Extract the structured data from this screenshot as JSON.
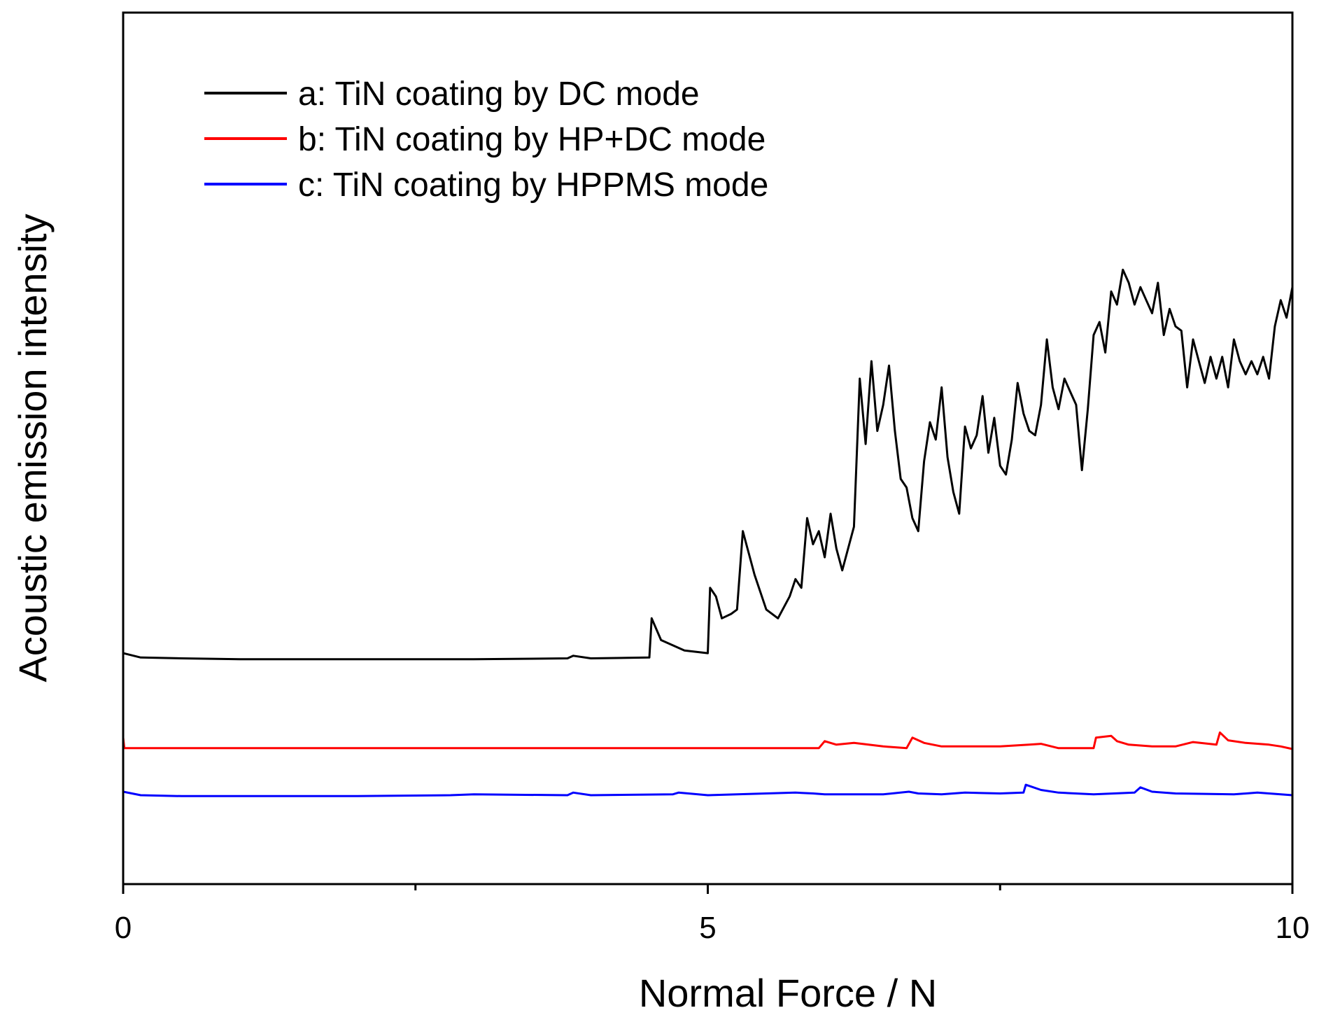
{
  "chart_data": {
    "type": "line",
    "title": "",
    "xlabel": "Normal Force / N",
    "ylabel": "Acoustic emission intensity",
    "xlim": [
      0,
      10
    ],
    "ylim": [
      0,
      100
    ],
    "x_ticks": [
      0,
      5,
      10
    ],
    "x_tick_labels": [
      "0",
      "5",
      "10"
    ],
    "x_minor_ticks": [
      2.5,
      7.5
    ],
    "y_ticks_shown": false,
    "grid": false,
    "legend_position": "top-left",
    "series": [
      {
        "name": "a: TiN coating by DC mode",
        "color": "#000000",
        "x": [
          0,
          0.15,
          0.5,
          1.0,
          2.0,
          3.0,
          3.8,
          3.85,
          4.0,
          4.5,
          4.52,
          4.6,
          4.8,
          5.0,
          5.02,
          5.07,
          5.12,
          5.2,
          5.25,
          5.3,
          5.33,
          5.38,
          5.4,
          5.45,
          5.5,
          5.6,
          5.7,
          5.75,
          5.8,
          5.85,
          5.9,
          5.95,
          6.0,
          6.05,
          6.1,
          6.15,
          6.2,
          6.25,
          6.3,
          6.35,
          6.4,
          6.45,
          6.5,
          6.55,
          6.6,
          6.65,
          6.7,
          6.75,
          6.8,
          6.85,
          6.9,
          6.95,
          7.0,
          7.05,
          7.1,
          7.15,
          7.2,
          7.25,
          7.3,
          7.35,
          7.4,
          7.45,
          7.5,
          7.55,
          7.6,
          7.65,
          7.7,
          7.75,
          7.8,
          7.85,
          7.9,
          7.95,
          8.0,
          8.05,
          8.1,
          8.15,
          8.2,
          8.25,
          8.3,
          8.35,
          8.4,
          8.45,
          8.5,
          8.55,
          8.6,
          8.65,
          8.7,
          8.75,
          8.8,
          8.85,
          8.9,
          8.95,
          9.0,
          9.05,
          9.1,
          9.15,
          9.2,
          9.25,
          9.3,
          9.35,
          9.4,
          9.45,
          9.5,
          9.55,
          9.6,
          9.65,
          9.7,
          9.75,
          9.8,
          9.85,
          9.9,
          9.95,
          10.0
        ],
        "y": [
          26.5,
          26.0,
          25.9,
          25.8,
          25.8,
          25.8,
          25.9,
          26.2,
          25.9,
          26.0,
          30.5,
          28.0,
          26.8,
          26.5,
          34.0,
          33.0,
          30.5,
          31.0,
          31.5,
          40.5,
          39.0,
          36.5,
          35.5,
          33.5,
          31.5,
          30.5,
          33.0,
          35.0,
          34.0,
          42.0,
          39.0,
          40.5,
          37.5,
          42.5,
          38.5,
          36.0,
          38.5,
          41.0,
          58.0,
          50.5,
          60.0,
          52.0,
          55.0,
          59.5,
          52.0,
          46.5,
          45.5,
          42.0,
          40.5,
          48.5,
          53.0,
          51.0,
          57.0,
          49.0,
          45.0,
          42.5,
          52.5,
          50.0,
          51.5,
          56.0,
          49.5,
          53.5,
          48.0,
          47.0,
          51.0,
          57.5,
          54.0,
          52.0,
          51.5,
          55.0,
          62.5,
          57.0,
          54.5,
          58.0,
          56.5,
          55.0,
          47.5,
          54.5,
          63.0,
          64.5,
          61.0,
          68.0,
          66.5,
          70.5,
          69.0,
          66.5,
          68.5,
          67.0,
          65.5,
          69.0,
          63.0,
          66.0,
          64.0,
          63.5,
          57.0,
          62.5,
          60.0,
          57.5,
          60.5,
          58.0,
          60.5,
          57.0,
          62.5,
          60.0,
          58.5,
          60.0,
          58.5,
          60.5,
          58.0,
          64.0,
          67.0,
          65.0,
          68.5
        ]
      },
      {
        "name": "b: TiN coating by HP+DC mode",
        "color": "#ff0000",
        "x": [
          0,
          0.01,
          0.02,
          1.0,
          2.0,
          3.0,
          4.0,
          5.0,
          5.95,
          6.0,
          6.1,
          6.25,
          6.5,
          6.7,
          6.75,
          6.85,
          7.0,
          7.2,
          7.5,
          7.75,
          7.85,
          8.0,
          8.3,
          8.32,
          8.45,
          8.5,
          8.6,
          8.8,
          9.0,
          9.15,
          9.35,
          9.38,
          9.45,
          9.6,
          9.8,
          9.9,
          10.0
        ],
        "y": [
          16.8,
          15.6,
          15.6,
          15.6,
          15.6,
          15.6,
          15.6,
          15.6,
          15.6,
          16.4,
          16.0,
          16.2,
          15.8,
          15.6,
          16.8,
          16.2,
          15.8,
          15.8,
          15.8,
          16.0,
          16.1,
          15.6,
          15.6,
          16.8,
          17.0,
          16.4,
          16.0,
          15.8,
          15.8,
          16.3,
          16.0,
          17.4,
          16.5,
          16.2,
          16.0,
          15.8,
          15.5
        ]
      },
      {
        "name": "c: TiN coating by HPPMS mode",
        "color": "#0000ff",
        "x": [
          0,
          0.15,
          0.5,
          1.0,
          2.0,
          2.8,
          3.0,
          3.8,
          3.85,
          4.0,
          4.7,
          4.75,
          5.0,
          5.5,
          5.75,
          5.9,
          6.0,
          6.5,
          6.72,
          6.8,
          7.0,
          7.2,
          7.5,
          7.7,
          7.72,
          7.85,
          8.0,
          8.3,
          8.65,
          8.7,
          8.8,
          9.0,
          9.5,
          9.7,
          9.9,
          10.0
        ],
        "y": [
          10.6,
          10.2,
          10.1,
          10.1,
          10.1,
          10.2,
          10.3,
          10.2,
          10.5,
          10.2,
          10.3,
          10.5,
          10.2,
          10.4,
          10.5,
          10.4,
          10.3,
          10.3,
          10.6,
          10.4,
          10.3,
          10.5,
          10.4,
          10.5,
          11.4,
          10.8,
          10.5,
          10.3,
          10.5,
          11.1,
          10.6,
          10.4,
          10.3,
          10.5,
          10.3,
          10.2
        ]
      }
    ]
  }
}
